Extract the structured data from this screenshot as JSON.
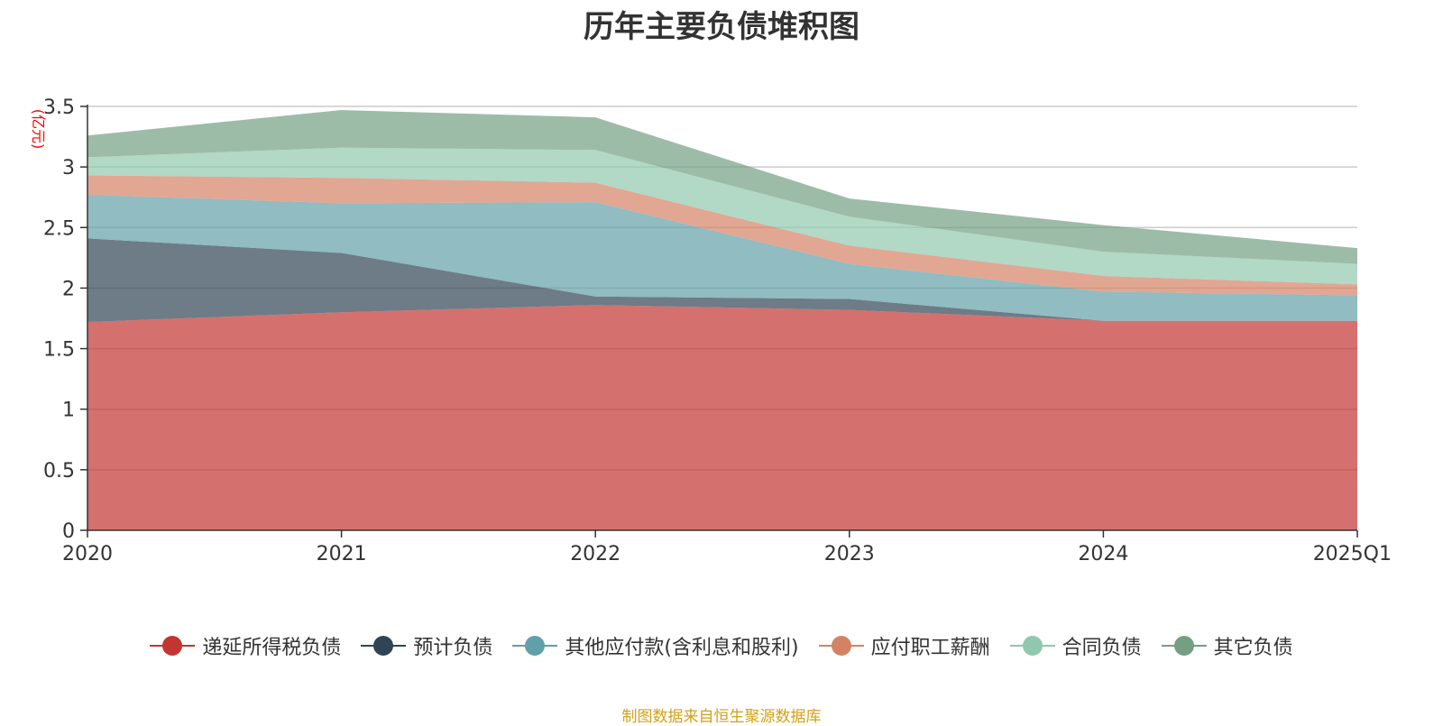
{
  "chart_data": {
    "type": "area",
    "stacked": true,
    "title": "历年主要负债堆积图",
    "ylabel": "(亿元)",
    "xlabel": "",
    "categories": [
      "2020",
      "2021",
      "2022",
      "2023",
      "2024",
      "2025Q1"
    ],
    "ylim": [
      0,
      3.5
    ],
    "yticks": [
      0,
      0.5,
      1,
      1.5,
      2,
      2.5,
      3,
      3.5
    ],
    "ytick_labels": [
      "0",
      "0.5",
      "1",
      "1.5",
      "2",
      "2.5",
      "3",
      "3.5"
    ],
    "grid": true,
    "legend_position": "bottom",
    "series": [
      {
        "name": "递延所得税负债",
        "color": "#c23531",
        "values": [
          1.72,
          1.8,
          1.86,
          1.82,
          1.73,
          1.73
        ]
      },
      {
        "name": "预计负债",
        "color": "#2f4554",
        "values": [
          0.69,
          0.49,
          0.07,
          0.09,
          0.0,
          0.0
        ]
      },
      {
        "name": "其他应付款(含利息和股利)",
        "color": "#61a0a8",
        "values": [
          0.36,
          0.41,
          0.78,
          0.29,
          0.24,
          0.21
        ]
      },
      {
        "name": "应付职工薪酬",
        "color": "#d48265",
        "values": [
          0.16,
          0.21,
          0.16,
          0.15,
          0.13,
          0.09
        ]
      },
      {
        "name": "合同负债",
        "color": "#91c7ae",
        "values": [
          0.15,
          0.25,
          0.27,
          0.24,
          0.2,
          0.17
        ]
      },
      {
        "name": "其它负债",
        "color": "#749f83",
        "values": [
          0.18,
          0.31,
          0.27,
          0.15,
          0.22,
          0.13
        ]
      }
    ]
  },
  "source_text": "制图数据来自恒生聚源数据库"
}
